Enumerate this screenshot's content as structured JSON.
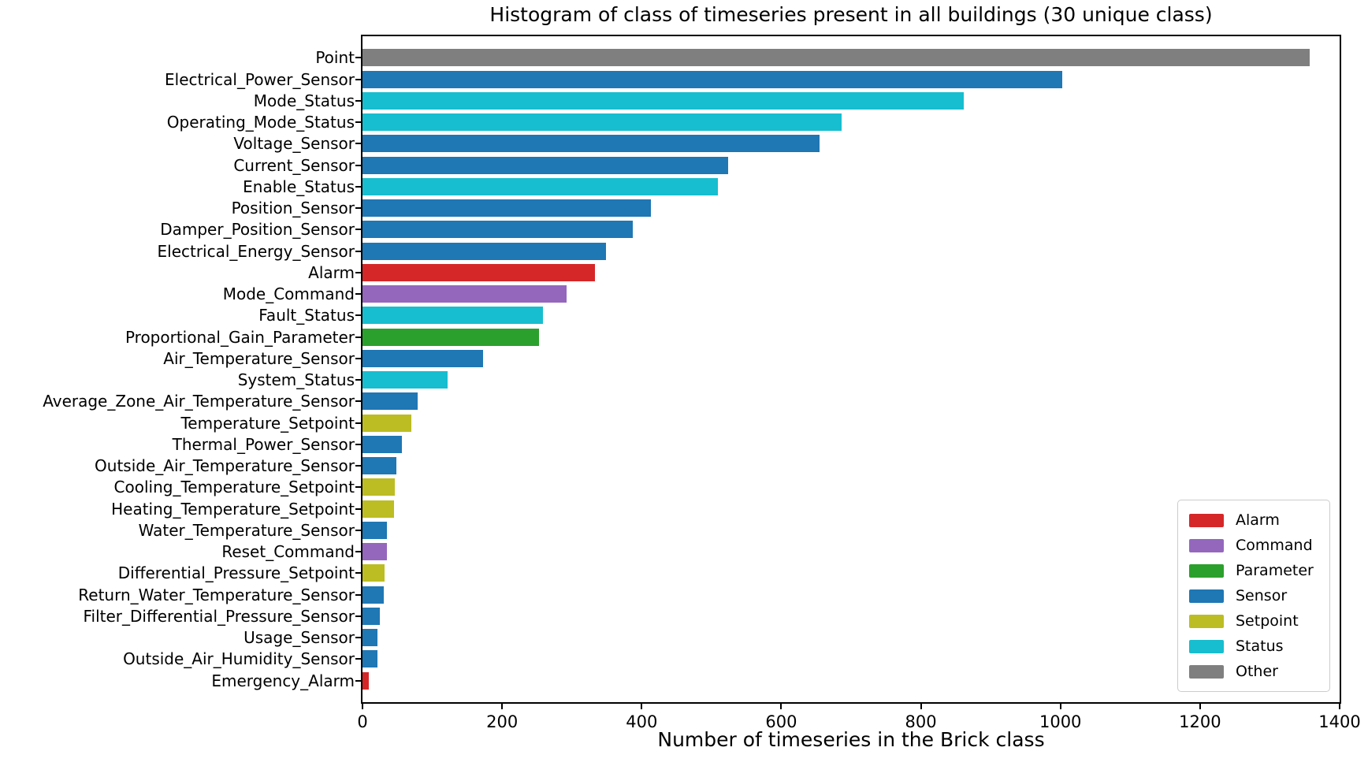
{
  "chart_data": {
    "type": "bar",
    "orientation": "horizontal",
    "title": "Histogram of class of timeseries present in all buildings (30 unique class)",
    "xlabel": "Number of timeseries in the Brick class",
    "ylabel": "",
    "xlim": [
      0,
      1400
    ],
    "xticks": [
      0,
      200,
      400,
      600,
      800,
      1000,
      1200,
      1400
    ],
    "grid": false,
    "categories": [
      "Point",
      "Electrical_Power_Sensor",
      "Mode_Status",
      "Operating_Mode_Status",
      "Voltage_Sensor",
      "Current_Sensor",
      "Enable_Status",
      "Position_Sensor",
      "Damper_Position_Sensor",
      "Electrical_Energy_Sensor",
      "Alarm",
      "Mode_Command",
      "Fault_Status",
      "Proportional_Gain_Parameter",
      "Air_Temperature_Sensor",
      "System_Status",
      "Average_Zone_Air_Temperature_Sensor",
      "Temperature_Setpoint",
      "Thermal_Power_Sensor",
      "Outside_Air_Temperature_Sensor",
      "Cooling_Temperature_Setpoint",
      "Heating_Temperature_Setpoint",
      "Water_Temperature_Sensor",
      "Reset_Command",
      "Differential_Pressure_Setpoint",
      "Return_Water_Temperature_Sensor",
      "Filter_Differential_Pressure_Sensor",
      "Usage_Sensor",
      "Outside_Air_Humidity_Sensor",
      "Emergency_Alarm"
    ],
    "values": [
      1357,
      1003,
      861,
      687,
      655,
      524,
      509,
      413,
      387,
      349,
      333,
      292,
      258,
      253,
      173,
      122,
      79,
      70,
      56,
      49,
      46,
      45,
      35,
      35,
      32,
      30,
      25,
      22,
      21,
      9
    ],
    "groups": [
      "Other",
      "Sensor",
      "Status",
      "Status",
      "Sensor",
      "Sensor",
      "Status",
      "Sensor",
      "Sensor",
      "Sensor",
      "Alarm",
      "Command",
      "Status",
      "Parameter",
      "Sensor",
      "Status",
      "Sensor",
      "Setpoint",
      "Sensor",
      "Sensor",
      "Setpoint",
      "Setpoint",
      "Sensor",
      "Command",
      "Setpoint",
      "Sensor",
      "Sensor",
      "Sensor",
      "Sensor",
      "Alarm"
    ],
    "group_colors": {
      "Alarm": "#d62728",
      "Command": "#9467bd",
      "Parameter": "#2ca02c",
      "Sensor": "#1f77b4",
      "Setpoint": "#bcbd22",
      "Status": "#17becf",
      "Other": "#7f7f7f"
    },
    "legend": {
      "position": "lower right",
      "entries": [
        {
          "label": "Alarm",
          "color": "#d62728"
        },
        {
          "label": "Command",
          "color": "#9467bd"
        },
        {
          "label": "Parameter",
          "color": "#2ca02c"
        },
        {
          "label": "Sensor",
          "color": "#1f77b4"
        },
        {
          "label": "Setpoint",
          "color": "#bcbd22"
        },
        {
          "label": "Status",
          "color": "#17becf"
        },
        {
          "label": "Other",
          "color": "#7f7f7f"
        }
      ]
    }
  }
}
